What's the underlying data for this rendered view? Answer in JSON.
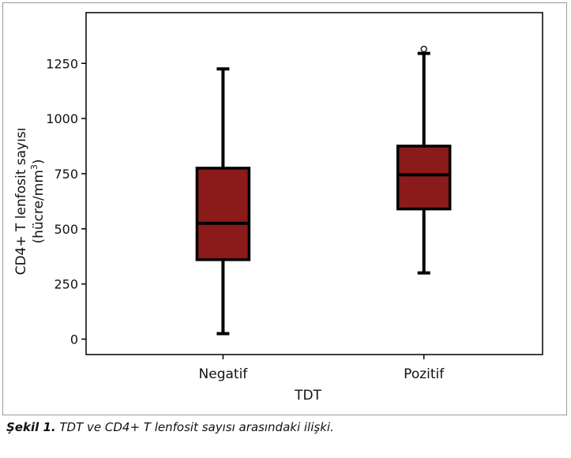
{
  "chart_data": {
    "type": "boxplot",
    "xlabel": "TDT",
    "ylabel_line1": "CD4+ T lenfosit sayısı",
    "ylabel_line2_prefix": "(hücre/mm",
    "ylabel_line2_sup": "3",
    "ylabel_line2_suffix": ")",
    "ylim": [
      -70,
      1480
    ],
    "yticks": [
      0,
      250,
      500,
      750,
      1000,
      1250
    ],
    "categories": [
      "Negatif",
      "Pozitif"
    ],
    "boxes": [
      {
        "category": "Negatif",
        "whisker_low": 25,
        "q1": 360,
        "median": 525,
        "q3": 775,
        "whisker_high": 1225,
        "outliers": []
      },
      {
        "category": "Pozitif",
        "whisker_low": 300,
        "q1": 590,
        "median": 745,
        "q3": 875,
        "whisker_high": 1295,
        "outliers": [
          1315
        ]
      }
    ],
    "box_color": "#8b1a1a",
    "line_color": "#000000",
    "grid": false
  },
  "caption": {
    "lead": "Şekil 1.",
    "text": " TDT ve CD4+ T lenfosit sayısı arasındaki ilişki."
  }
}
